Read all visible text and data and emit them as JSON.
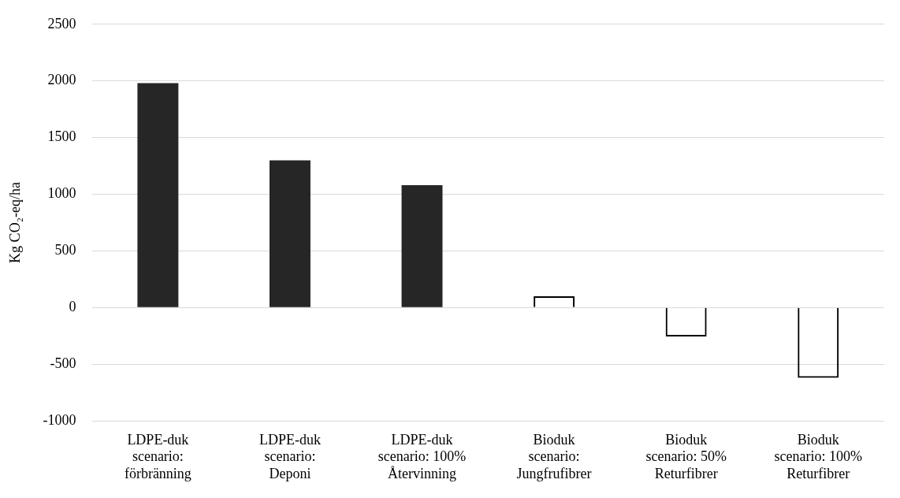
{
  "chart_data": {
    "type": "bar",
    "categories": [
      "LDPE-duk\nscenario:\nförbränning",
      "LDPE-duk\nscenario:\nDeponi",
      "LDPE-duk\nscenario: 100%\nÅtervinning",
      "Bioduk\nscenario:\nJungfrufibrer",
      "Bioduk\nscenario: 50%\nReturfibrer",
      "Bioduk\nscenario: 100%\nReturfibrer"
    ],
    "values": [
      1980,
      1300,
      1080,
      100,
      -255,
      -620
    ],
    "colors": [
      "#262626",
      "#262626",
      "#262626",
      "#000000",
      "#000000",
      "#000000"
    ],
    "ylabel": "Kg CO₂-eq/ha",
    "ylim": [
      -1000,
      2500
    ],
    "yticks": [
      -1000,
      -500,
      0,
      500,
      1000,
      1500,
      2000,
      2500
    ],
    "grid": "y",
    "legend": false
  }
}
